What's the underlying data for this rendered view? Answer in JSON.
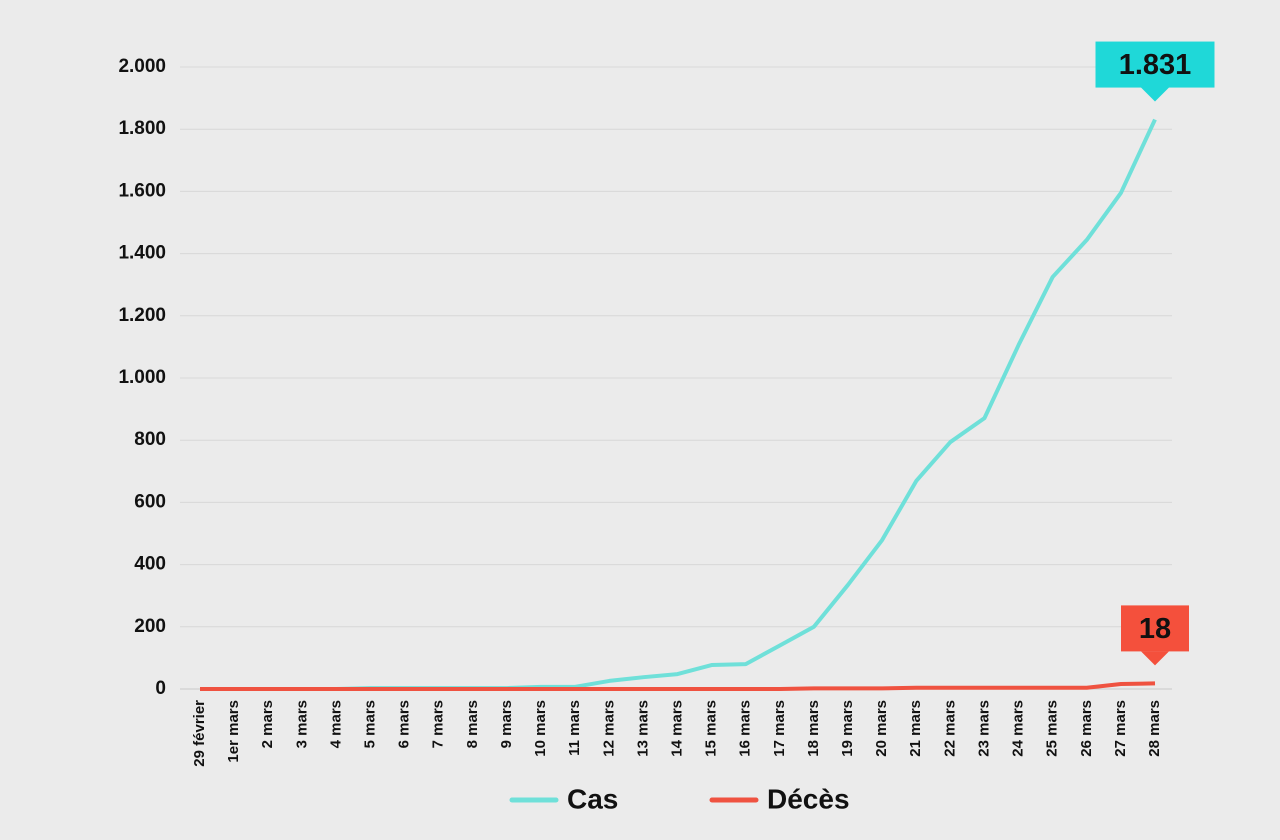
{
  "chart_data": {
    "type": "line",
    "categories": [
      "29 février",
      "1er mars",
      "2 mars",
      "3 mars",
      "4 mars",
      "5 mars",
      "6 mars",
      "7 mars",
      "8 mars",
      "9 mars",
      "10 mars",
      "11 mars",
      "12 mars",
      "13 mars",
      "14 mars",
      "15 mars",
      "16 mars",
      "17 mars",
      "18 mars",
      "19 mars",
      "20 mars",
      "21 mars",
      "22 mars",
      "23 mars",
      "24 mars",
      "25 mars",
      "26 mars",
      "27 mars",
      "28 mars"
    ],
    "series": [
      {
        "name": "Cas",
        "color": "#6fe0d9",
        "callout_color": "#1fd8d8",
        "values": [
          0,
          0,
          0,
          0,
          0,
          3,
          3,
          3,
          3,
          3,
          7,
          7,
          26,
          38,
          48,
          77,
          80,
          140,
          200,
          335,
          479,
          669,
          794,
          871,
          1106,
          1325,
          1444,
          1595,
          1831
        ],
        "value_labels": [
          null,
          null,
          null,
          null,
          null,
          null,
          null,
          null,
          null,
          null,
          null,
          null,
          null,
          null,
          null,
          null,
          null,
          null,
          null,
          null,
          null,
          null,
          null,
          null,
          null,
          null,
          null,
          null,
          "1.831"
        ]
      },
      {
        "name": "Décès",
        "color": "#ef5240",
        "callout_color": "#f4503c",
        "values": [
          0,
          0,
          0,
          0,
          0,
          0,
          0,
          0,
          0,
          0,
          0,
          0,
          0,
          0,
          0,
          0,
          0,
          0,
          2,
          2,
          2,
          4,
          4,
          4,
          4,
          4,
          4,
          16,
          18
        ],
        "value_labels": [
          null,
          null,
          null,
          null,
          null,
          null,
          null,
          null,
          null,
          null,
          null,
          null,
          null,
          null,
          null,
          null,
          null,
          null,
          null,
          null,
          null,
          null,
          null,
          null,
          null,
          null,
          null,
          null,
          "18"
        ]
      }
    ],
    "ylim": [
      0,
      2000
    ],
    "yticks": [
      0,
      200,
      400,
      600,
      800,
      {
        "value": 1000,
        "label": "1.000"
      },
      {
        "value": 1200,
        "label": "1.200"
      },
      {
        "value": 1400,
        "label": "1.400"
      },
      {
        "value": 1600,
        "label": "1.600"
      },
      {
        "value": 1800,
        "label": "1.800"
      },
      {
        "value": 2000,
        "label": "2.000"
      }
    ],
    "grid": true,
    "legend": "bottom"
  }
}
